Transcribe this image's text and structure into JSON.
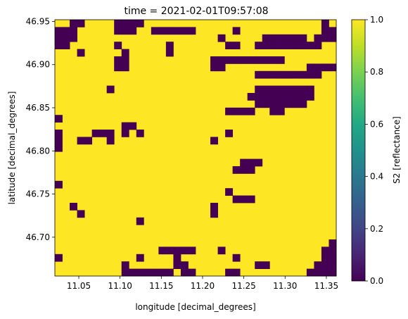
{
  "chart_data": {
    "type": "heatmap",
    "title": "time = 2021-02-01T09:57:08",
    "xlabel": "longitude [decimal_degrees]",
    "ylabel": "latitude [decimal_degrees]",
    "xlim": [
      11.021,
      11.362
    ],
    "ylim": [
      46.655,
      46.952
    ],
    "x_ticks": [
      11.05,
      11.1,
      11.15,
      11.2,
      11.25,
      11.3,
      11.35
    ],
    "x_tick_labels": [
      "11.05",
      "11.10",
      "11.15",
      "11.20",
      "11.25",
      "11.30",
      "11.35"
    ],
    "y_ticks": [
      46.7,
      46.75,
      46.8,
      46.85,
      46.9,
      46.95
    ],
    "y_tick_labels": [
      "46.70",
      "46.75",
      "46.80",
      "46.85",
      "46.90",
      "46.95"
    ],
    "colorbar": {
      "label": "S2 [reflectance]",
      "colormap": "viridis",
      "range": [
        0.0,
        1.0
      ],
      "ticks": [
        0.0,
        0.2,
        0.4,
        0.6,
        0.8,
        1.0
      ],
      "tick_labels": [
        "0.0",
        "0.2",
        "0.4",
        "0.6",
        "0.8",
        "1.0"
      ]
    },
    "colors": {
      "high": "#fde725",
      "low": "#440154"
    },
    "grid": false,
    "n_cols": 38,
    "n_rows": 35,
    "row_order": "top-to-bottom",
    "value_legend": {
      "#": 0.0,
      ".": 1.0
    },
    "rows": [
      "..##....####........................#.",
      "###.....###..######.....#...........##",
      "###...................#.....######.###",
      "##......#......#.......##..#########..",
      "...#.....#.....#......................",
      "........##...........##########.......",
      "........##...........##...........####",
      "...........................#########..",
      "......................................",
      ".......#...................########...",
      "..........................#########...",
      "...........................#######....",
      ".......................####..##.......",
      "#.....................................",
      ".........##...........................",
      "#....###.#.#...........#..............",
      "#..##..#.............#................",
      "#.....................................",
      "......................................",
      ".........................###..........",
      "........................###...........",
      "......................................",
      "#.....................................",
      ".......................#..............",
      "........................###...........",
      "..#..................#................",
      "...#.................#................",
      "...........#..........................",
      "......................................",
      "......................................",
      ".....................................#",
      "..............#####...#.............##",
      "#..........#....#.......#...........##",
      ".........#......##.........##......###",
      ".........#######.##....##.........####"
    ]
  }
}
